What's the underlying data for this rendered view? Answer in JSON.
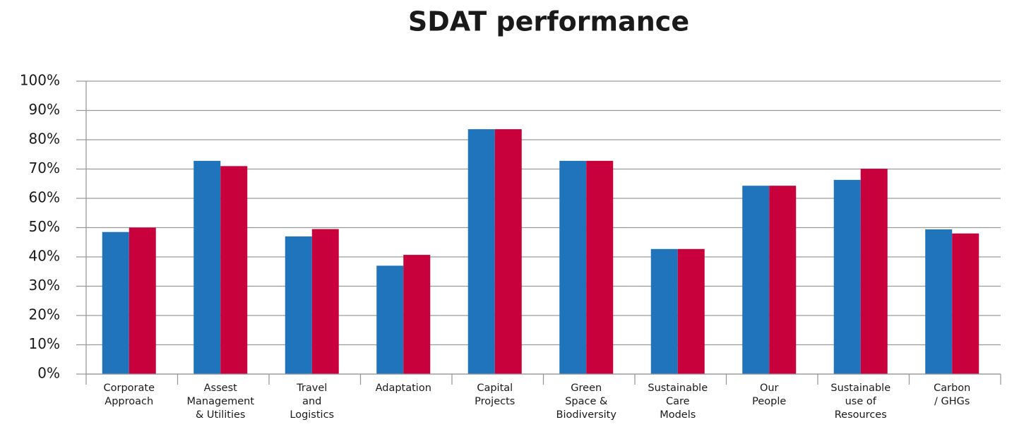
{
  "chart_data": {
    "type": "bar",
    "title": "SDAT performance",
    "categories": [
      "Corporate\nApproach",
      "Assest\nManagement\n& Utilities",
      "Travel\nand\nLogistics",
      "Adaptation",
      "Capital\nProjects",
      "Green\nSpace &\nBiodiversity",
      "Sustainable\nCare\nModels",
      "Our\nPeople",
      "Sustainable\nuse of\nResources",
      "Carbon\n/ GHGs"
    ],
    "series": [
      {
        "color": "#1f74bb",
        "values": [
          48.5,
          72.8,
          47,
          37,
          83.6,
          72.8,
          42.7,
          64.3,
          66.3,
          49.4
        ]
      },
      {
        "color": "#c8003c",
        "values": [
          50,
          71,
          49.5,
          40.7,
          83.6,
          72.8,
          42.7,
          64.3,
          70.1,
          48
        ]
      }
    ],
    "ylim": [
      0,
      100
    ],
    "yticks": [
      {
        "value": 0,
        "label": "0%"
      },
      {
        "value": 10,
        "label": "10%"
      },
      {
        "value": 20,
        "label": "20%"
      },
      {
        "value": 30,
        "label": "30%"
      },
      {
        "value": 40,
        "label": "40%"
      },
      {
        "value": 50,
        "label": "50%"
      },
      {
        "value": 60,
        "label": "60%"
      },
      {
        "value": 70,
        "label": "70%"
      },
      {
        "value": 80,
        "label": "80%"
      },
      {
        "value": 90,
        "label": "90%"
      },
      {
        "value": 100,
        "label": "100%"
      }
    ],
    "grid": true
  }
}
